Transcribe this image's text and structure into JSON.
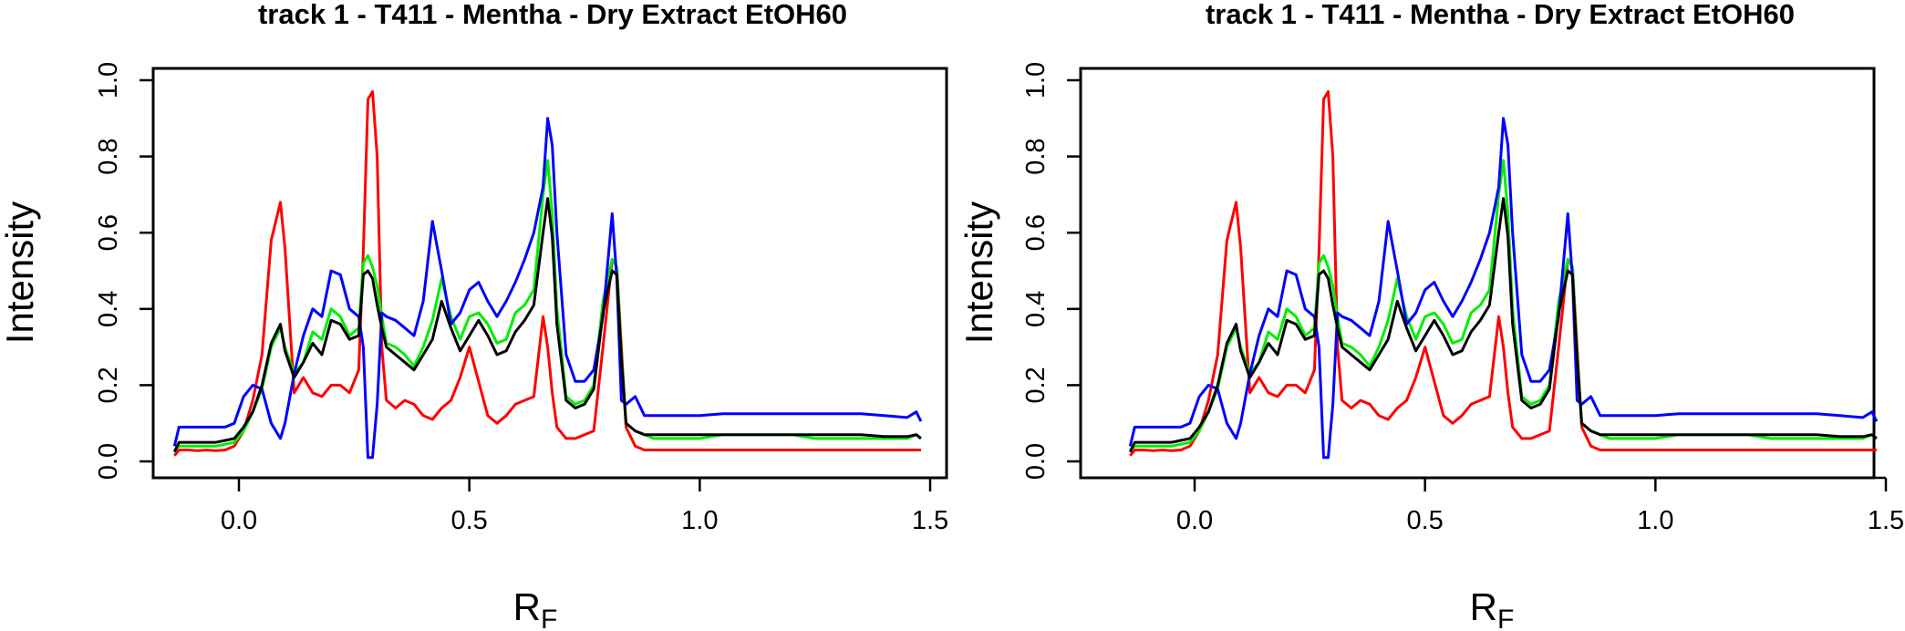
{
  "chart_data": [
    {
      "type": "line",
      "title": "track  1  - T411  - Mentha  - Dry Extract EtOH60",
      "xlabel": "R",
      "xlabel_sub": "F",
      "ylabel": "Intensity",
      "xlim": [
        -0.15,
        1.5
      ],
      "ylim": [
        0.0,
        1.0
      ],
      "x_ticks": [
        0.0,
        0.5,
        1.0,
        1.5
      ],
      "x_tick_labels": [
        "0.0",
        "0.5",
        "1.0",
        "1.5"
      ],
      "y_ticks": [
        0.0,
        0.2,
        0.4,
        0.6,
        0.8,
        1.0
      ],
      "y_tick_labels": [
        "0.0",
        "0.2",
        "0.4",
        "0.6",
        "0.8",
        "1.0"
      ],
      "grid": false,
      "legend": "none",
      "x": [
        -0.14,
        -0.13,
        -0.11,
        -0.09,
        -0.07,
        -0.05,
        -0.03,
        -0.01,
        0.01,
        0.03,
        0.05,
        0.07,
        0.09,
        0.1,
        0.12,
        0.14,
        0.16,
        0.18,
        0.2,
        0.22,
        0.24,
        0.26,
        0.27,
        0.28,
        0.29,
        0.3,
        0.31,
        0.32,
        0.34,
        0.36,
        0.38,
        0.4,
        0.42,
        0.44,
        0.46,
        0.48,
        0.5,
        0.52,
        0.54,
        0.56,
        0.58,
        0.6,
        0.62,
        0.64,
        0.66,
        0.67,
        0.68,
        0.69,
        0.71,
        0.73,
        0.75,
        0.77,
        0.79,
        0.81,
        0.82,
        0.83,
        0.84,
        0.86,
        0.88,
        0.9,
        0.95,
        1.0,
        1.05,
        1.1,
        1.15,
        1.2,
        1.25,
        1.3,
        1.35,
        1.4,
        1.45,
        1.47,
        1.48
      ],
      "series": [
        {
          "color": "#ff0000",
          "values": [
            0.015,
            0.03,
            0.03,
            0.028,
            0.03,
            0.028,
            0.03,
            0.04,
            0.08,
            0.16,
            0.28,
            0.58,
            0.68,
            0.56,
            0.18,
            0.22,
            0.18,
            0.17,
            0.2,
            0.2,
            0.18,
            0.24,
            0.55,
            0.95,
            0.97,
            0.8,
            0.3,
            0.16,
            0.14,
            0.16,
            0.15,
            0.12,
            0.11,
            0.14,
            0.16,
            0.22,
            0.3,
            0.21,
            0.12,
            0.1,
            0.12,
            0.15,
            0.16,
            0.17,
            0.38,
            0.3,
            0.18,
            0.09,
            0.06,
            0.06,
            0.07,
            0.08,
            0.3,
            0.53,
            0.51,
            0.3,
            0.09,
            0.04,
            0.03,
            0.03,
            0.03,
            0.03,
            0.03,
            0.03,
            0.03,
            0.03,
            0.03,
            0.03,
            0.03,
            0.03,
            0.03,
            0.03,
            0.03
          ]
        },
        {
          "color": "#00ee00",
          "values": [
            0.03,
            0.04,
            0.04,
            0.04,
            0.04,
            0.04,
            0.045,
            0.05,
            0.08,
            0.13,
            0.19,
            0.3,
            0.35,
            0.3,
            0.23,
            0.26,
            0.34,
            0.32,
            0.4,
            0.38,
            0.33,
            0.35,
            0.52,
            0.54,
            0.51,
            0.46,
            0.38,
            0.31,
            0.3,
            0.28,
            0.25,
            0.3,
            0.37,
            0.48,
            0.38,
            0.32,
            0.38,
            0.39,
            0.36,
            0.31,
            0.32,
            0.39,
            0.41,
            0.45,
            0.7,
            0.79,
            0.65,
            0.4,
            0.17,
            0.15,
            0.16,
            0.2,
            0.42,
            0.53,
            0.51,
            0.28,
            0.1,
            0.08,
            0.07,
            0.06,
            0.06,
            0.06,
            0.07,
            0.07,
            0.07,
            0.07,
            0.06,
            0.06,
            0.06,
            0.06,
            0.06,
            0.07,
            0.06
          ]
        },
        {
          "color": "#0000ff",
          "values": [
            0.04,
            0.09,
            0.09,
            0.09,
            0.09,
            0.09,
            0.09,
            0.1,
            0.17,
            0.2,
            0.19,
            0.1,
            0.06,
            0.1,
            0.23,
            0.33,
            0.4,
            0.38,
            0.5,
            0.49,
            0.4,
            0.38,
            0.3,
            0.01,
            0.01,
            0.15,
            0.39,
            0.38,
            0.37,
            0.35,
            0.33,
            0.42,
            0.63,
            0.5,
            0.36,
            0.39,
            0.45,
            0.47,
            0.42,
            0.38,
            0.42,
            0.47,
            0.53,
            0.6,
            0.72,
            0.9,
            0.83,
            0.6,
            0.28,
            0.21,
            0.21,
            0.24,
            0.38,
            0.65,
            0.48,
            0.16,
            0.15,
            0.17,
            0.12,
            0.12,
            0.12,
            0.12,
            0.125,
            0.125,
            0.125,
            0.125,
            0.125,
            0.125,
            0.125,
            0.12,
            0.115,
            0.13,
            0.105
          ]
        },
        {
          "color": "#000000",
          "values": [
            0.025,
            0.05,
            0.05,
            0.05,
            0.05,
            0.05,
            0.055,
            0.06,
            0.09,
            0.13,
            0.2,
            0.31,
            0.36,
            0.29,
            0.22,
            0.26,
            0.31,
            0.28,
            0.37,
            0.36,
            0.32,
            0.33,
            0.49,
            0.5,
            0.48,
            0.41,
            0.35,
            0.3,
            0.28,
            0.26,
            0.24,
            0.28,
            0.32,
            0.42,
            0.35,
            0.29,
            0.33,
            0.37,
            0.33,
            0.28,
            0.29,
            0.34,
            0.37,
            0.41,
            0.6,
            0.69,
            0.59,
            0.36,
            0.16,
            0.14,
            0.15,
            0.19,
            0.39,
            0.5,
            0.49,
            0.27,
            0.1,
            0.08,
            0.07,
            0.07,
            0.07,
            0.07,
            0.07,
            0.07,
            0.07,
            0.07,
            0.07,
            0.07,
            0.07,
            0.065,
            0.065,
            0.07,
            0.06
          ]
        }
      ]
    },
    {
      "type": "line",
      "title": "track  1  - T411  - Mentha  - Dry Extract EtOH60",
      "xlabel": "R",
      "xlabel_sub": "F",
      "ylabel": "Intensity",
      "xlim": [
        -0.15,
        1.5
      ],
      "ylim": [
        0.0,
        1.0
      ],
      "x_ticks": [
        0.0,
        0.5,
        1.0,
        1.5
      ],
      "x_tick_labels": [
        "0.0",
        "0.5",
        "1.0",
        "1.5"
      ],
      "y_ticks": [
        0.0,
        0.2,
        0.4,
        0.6,
        0.8,
        1.0
      ],
      "y_tick_labels": [
        "0.0",
        "0.2",
        "0.4",
        "0.6",
        "0.8",
        "1.0"
      ],
      "grid": false,
      "legend": "none",
      "x": [
        -0.14,
        -0.13,
        -0.11,
        -0.09,
        -0.07,
        -0.05,
        -0.03,
        -0.01,
        0.01,
        0.03,
        0.05,
        0.07,
        0.09,
        0.1,
        0.12,
        0.14,
        0.16,
        0.18,
        0.2,
        0.22,
        0.24,
        0.26,
        0.27,
        0.28,
        0.29,
        0.3,
        0.31,
        0.32,
        0.34,
        0.36,
        0.38,
        0.4,
        0.42,
        0.44,
        0.46,
        0.48,
        0.5,
        0.52,
        0.54,
        0.56,
        0.58,
        0.6,
        0.62,
        0.64,
        0.66,
        0.67,
        0.68,
        0.69,
        0.71,
        0.73,
        0.75,
        0.77,
        0.79,
        0.81,
        0.82,
        0.83,
        0.84,
        0.86,
        0.88,
        0.9,
        0.95,
        1.0,
        1.05,
        1.1,
        1.15,
        1.2,
        1.25,
        1.3,
        1.35,
        1.4,
        1.45,
        1.47,
        1.48
      ],
      "series": [
        {
          "color": "#ff0000",
          "values": [
            0.015,
            0.03,
            0.03,
            0.028,
            0.03,
            0.028,
            0.03,
            0.04,
            0.08,
            0.16,
            0.28,
            0.58,
            0.68,
            0.56,
            0.18,
            0.22,
            0.18,
            0.17,
            0.2,
            0.2,
            0.18,
            0.24,
            0.55,
            0.95,
            0.97,
            0.8,
            0.3,
            0.16,
            0.14,
            0.16,
            0.15,
            0.12,
            0.11,
            0.14,
            0.16,
            0.22,
            0.3,
            0.21,
            0.12,
            0.1,
            0.12,
            0.15,
            0.16,
            0.17,
            0.38,
            0.3,
            0.18,
            0.09,
            0.06,
            0.06,
            0.07,
            0.08,
            0.3,
            0.53,
            0.51,
            0.3,
            0.09,
            0.04,
            0.03,
            0.03,
            0.03,
            0.03,
            0.03,
            0.03,
            0.03,
            0.03,
            0.03,
            0.03,
            0.03,
            0.03,
            0.03,
            0.03,
            0.03
          ]
        },
        {
          "color": "#00ee00",
          "values": [
            0.03,
            0.04,
            0.04,
            0.04,
            0.04,
            0.04,
            0.045,
            0.05,
            0.08,
            0.13,
            0.19,
            0.3,
            0.35,
            0.3,
            0.23,
            0.26,
            0.34,
            0.32,
            0.4,
            0.38,
            0.33,
            0.35,
            0.52,
            0.54,
            0.51,
            0.46,
            0.38,
            0.31,
            0.3,
            0.28,
            0.25,
            0.3,
            0.37,
            0.48,
            0.38,
            0.32,
            0.38,
            0.39,
            0.36,
            0.31,
            0.32,
            0.39,
            0.41,
            0.45,
            0.7,
            0.79,
            0.65,
            0.4,
            0.17,
            0.15,
            0.16,
            0.2,
            0.42,
            0.53,
            0.51,
            0.28,
            0.1,
            0.08,
            0.07,
            0.06,
            0.06,
            0.06,
            0.07,
            0.07,
            0.07,
            0.07,
            0.06,
            0.06,
            0.06,
            0.06,
            0.06,
            0.07,
            0.06
          ]
        },
        {
          "color": "#0000ff",
          "values": [
            0.04,
            0.09,
            0.09,
            0.09,
            0.09,
            0.09,
            0.09,
            0.1,
            0.17,
            0.2,
            0.19,
            0.1,
            0.06,
            0.1,
            0.23,
            0.33,
            0.4,
            0.38,
            0.5,
            0.49,
            0.4,
            0.38,
            0.3,
            0.01,
            0.01,
            0.15,
            0.39,
            0.38,
            0.37,
            0.35,
            0.33,
            0.42,
            0.63,
            0.5,
            0.36,
            0.39,
            0.45,
            0.47,
            0.42,
            0.38,
            0.42,
            0.47,
            0.53,
            0.6,
            0.72,
            0.9,
            0.83,
            0.6,
            0.28,
            0.21,
            0.21,
            0.24,
            0.38,
            0.65,
            0.48,
            0.16,
            0.15,
            0.17,
            0.12,
            0.12,
            0.12,
            0.12,
            0.125,
            0.125,
            0.125,
            0.125,
            0.125,
            0.125,
            0.125,
            0.12,
            0.115,
            0.13,
            0.105
          ]
        },
        {
          "color": "#000000",
          "values": [
            0.025,
            0.05,
            0.05,
            0.05,
            0.05,
            0.05,
            0.055,
            0.06,
            0.09,
            0.13,
            0.2,
            0.31,
            0.36,
            0.29,
            0.22,
            0.26,
            0.31,
            0.28,
            0.37,
            0.36,
            0.32,
            0.33,
            0.49,
            0.5,
            0.48,
            0.41,
            0.35,
            0.3,
            0.28,
            0.26,
            0.24,
            0.28,
            0.32,
            0.42,
            0.35,
            0.29,
            0.33,
            0.37,
            0.33,
            0.28,
            0.29,
            0.34,
            0.37,
            0.41,
            0.6,
            0.69,
            0.59,
            0.36,
            0.16,
            0.14,
            0.15,
            0.19,
            0.39,
            0.5,
            0.49,
            0.27,
            0.1,
            0.08,
            0.07,
            0.07,
            0.07,
            0.07,
            0.07,
            0.07,
            0.07,
            0.07,
            0.07,
            0.07,
            0.07,
            0.065,
            0.065,
            0.07,
            0.06
          ]
        }
      ]
    }
  ]
}
